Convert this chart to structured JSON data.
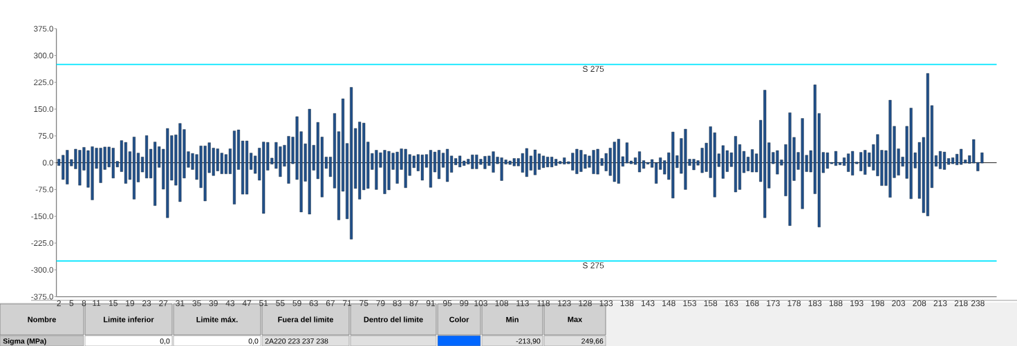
{
  "chart_data": {
    "type": "bar",
    "color": "#21508a",
    "categories": [
      "2",
      null,
      null,
      "5",
      null,
      null,
      "8",
      null,
      null,
      "11",
      null,
      null,
      null,
      "15",
      null,
      null,
      null,
      "19",
      null,
      null,
      null,
      "23",
      null,
      null,
      null,
      "27",
      null,
      null,
      null,
      "31",
      null,
      null,
      null,
      "35",
      null,
      null,
      null,
      "39",
      null,
      null,
      null,
      "43",
      null,
      null,
      null,
      "47",
      null,
      null,
      null,
      "51",
      null,
      null,
      null,
      "55",
      null,
      null,
      null,
      "59",
      null,
      null,
      null,
      "63",
      null,
      null,
      null,
      "67",
      null,
      null,
      null,
      "71",
      null,
      null,
      null,
      "75",
      null,
      null,
      null,
      "79",
      null,
      null,
      null,
      "83",
      null,
      null,
      null,
      "87",
      null,
      null,
      null,
      "91",
      null,
      null,
      null,
      "95",
      null,
      null,
      null,
      "99",
      null,
      null,
      null,
      "103",
      null,
      null,
      null,
      null,
      "108",
      null,
      null,
      null,
      null,
      "113",
      null,
      null,
      null,
      null,
      "118",
      null,
      null,
      null,
      null,
      "123",
      null,
      null,
      null,
      null,
      "128",
      null,
      null,
      null,
      null,
      "133",
      null,
      null,
      null,
      null,
      "138",
      null,
      null,
      null,
      null,
      "143",
      null,
      null,
      null,
      null,
      "148",
      null,
      null,
      null,
      null,
      "153",
      null,
      null,
      null,
      null,
      "158",
      null,
      null,
      null,
      null,
      "163",
      null,
      null,
      null,
      null,
      "168",
      null,
      null,
      null,
      null,
      "173",
      null,
      null,
      null,
      null,
      "178",
      null,
      null,
      null,
      null,
      "183",
      null,
      null,
      null,
      null,
      "188",
      null,
      null,
      null,
      null,
      "193",
      null,
      null,
      null,
      null,
      "198",
      null,
      null,
      null,
      null,
      "203",
      null,
      null,
      null,
      null,
      "208",
      null,
      null,
      null,
      null,
      "213",
      null,
      null,
      null,
      null,
      "218",
      null,
      null,
      null,
      "238",
      null
    ],
    "base": [
      -8,
      -47,
      -60,
      -9,
      -17,
      -63,
      -21,
      -69,
      -104,
      -16,
      -56,
      -19,
      -12,
      -43,
      -12,
      -25,
      -58,
      -47,
      -102,
      -54,
      -26,
      -43,
      -43,
      -120,
      -13,
      -74,
      -154,
      -49,
      -63,
      -109,
      -43,
      -13,
      -19,
      -47,
      -70,
      -107,
      -28,
      -36,
      -23,
      -31,
      -31,
      -31,
      -116,
      -19,
      -88,
      -88,
      -19,
      -30,
      -49,
      -142,
      -21,
      -4,
      -16,
      -39,
      -10,
      -58,
      -3,
      -47,
      -138,
      -52,
      -144,
      -21,
      -45,
      -96,
      -16,
      -39,
      -71,
      -160,
      -80,
      -157,
      -214,
      -72,
      -102,
      -76,
      -72,
      -19,
      -75,
      -13,
      -87,
      -76,
      -19,
      -58,
      -19,
      -70,
      -36,
      -14,
      -23,
      -49,
      -13,
      -69,
      -26,
      -45,
      -13,
      -53,
      -27,
      -6,
      -12,
      -8,
      -4,
      -17,
      -17,
      -5,
      -17,
      -8,
      -27,
      -3,
      -50,
      -4,
      -5,
      -9,
      -9,
      -27,
      -39,
      -21,
      -34,
      -19,
      -14,
      -12,
      -12,
      -8,
      -3,
      -4,
      -3,
      -21,
      -31,
      -25,
      -16,
      -13,
      -31,
      -32,
      -8,
      -23,
      -36,
      -53,
      -58,
      -10,
      -1,
      -3,
      -5,
      -26,
      -16,
      -4,
      -13,
      -58,
      -19,
      -32,
      -47,
      -99,
      -14,
      -30,
      -75,
      -8,
      -20,
      -7,
      -28,
      -25,
      -42,
      -96,
      -11,
      -44,
      -25,
      -11,
      -82,
      -75,
      -28,
      -23,
      -26,
      -26,
      -53,
      -154,
      -71,
      -3,
      -32,
      -7,
      -93,
      -176,
      -50,
      -19,
      -129,
      -25,
      -26,
      -87,
      -180,
      -28,
      -16,
      -3,
      -8,
      -6,
      -8,
      -25,
      -35,
      -3,
      -23,
      -33,
      -11,
      -21,
      -37,
      -64,
      -64,
      -97,
      -42,
      -35,
      -10,
      -44,
      -101,
      -15,
      -100,
      -140,
      -149,
      -70,
      -10,
      -17,
      -19,
      -5,
      -3,
      -6,
      -5,
      -1,
      -2,
      -1,
      -23,
      -1
    ],
    "values": [
      18,
      68,
      95,
      18,
      55,
      98,
      64,
      103,
      149,
      57,
      97,
      63,
      56,
      84,
      16,
      87,
      115,
      78,
      174,
      81,
      42,
      119,
      81,
      178,
      58,
      112,
      250,
      125,
      141,
      219,
      136,
      44,
      45,
      70,
      117,
      154,
      84,
      77,
      62,
      58,
      54,
      70,
      205,
      111,
      149,
      149,
      46,
      49,
      90,
      200,
      78,
      17,
      73,
      84,
      59,
      132,
      75,
      176,
      225,
      105,
      294,
      70,
      158,
      168,
      32,
      55,
      209,
      247,
      259,
      211,
      425,
      168,
      216,
      187,
      130,
      45,
      110,
      41,
      122,
      108,
      46,
      88,
      58,
      108,
      59,
      33,
      46,
      71,
      36,
      104,
      56,
      80,
      40,
      91,
      46,
      18,
      31,
      13,
      14,
      39,
      39,
      15,
      35,
      27,
      58,
      19,
      64,
      12,
      10,
      21,
      21,
      53,
      79,
      40,
      70,
      44,
      33,
      28,
      28,
      18,
      7,
      18,
      6,
      48,
      69,
      60,
      39,
      32,
      66,
      70,
      20,
      49,
      77,
      111,
      124,
      27,
      57,
      8,
      19,
      57,
      22,
      5,
      22,
      58,
      33,
      38,
      75,
      185,
      34,
      98,
      169,
      18,
      30,
      13,
      69,
      80,
      143,
      180,
      36,
      92,
      59,
      39,
      156,
      126,
      60,
      39,
      63,
      51,
      172,
      357,
      127,
      32,
      66,
      15,
      144,
      316,
      121,
      48,
      253,
      46,
      60,
      305,
      318,
      57,
      44,
      4,
      40,
      7,
      22,
      50,
      67,
      5,
      52,
      68,
      39,
      72,
      116,
      99,
      98,
      272,
      144,
      74,
      26,
      146,
      254,
      43,
      157,
      211,
      399,
      230,
      30,
      49,
      49,
      17,
      17,
      30,
      43,
      9,
      22,
      66,
      24,
      29
    ],
    "ylim": [
      -375,
      375
    ],
    "yticks": [
      {
        "value": 375,
        "label": "375.0"
      },
      {
        "value": 300,
        "label": "300.0"
      },
      {
        "value": 225,
        "label": "225.0"
      },
      {
        "value": 150,
        "label": "150.0"
      },
      {
        "value": 75,
        "label": "75.0"
      },
      {
        "value": 0,
        "label": "0.0"
      },
      {
        "value": -75,
        "label": "-75.0"
      },
      {
        "value": -150,
        "label": "-150.0"
      },
      {
        "value": -225,
        "label": "-225.0"
      },
      {
        "value": -300,
        "label": "-300.0"
      },
      {
        "value": -375,
        "label": "-375.0"
      }
    ],
    "ref_lines": [
      {
        "axis": "y",
        "value": 275,
        "label": "S 275",
        "color": "#00e5ff"
      },
      {
        "axis": "y",
        "value": -275,
        "label": "S 275",
        "color": "#00e5ff"
      },
      {
        "axis": "y",
        "value": 0,
        "color": "#000000"
      }
    ],
    "annotations": [
      "Nombre",
      "Limite inferior",
      "Limite máx.",
      "Fuera del limite",
      "Dentro del limite",
      "Color",
      "Min",
      "Max",
      "Sigma (MPa)",
      "0,0",
      "0,0",
      "2A220 223 237 238",
      "-213,90",
      "249,66"
    ]
  }
}
